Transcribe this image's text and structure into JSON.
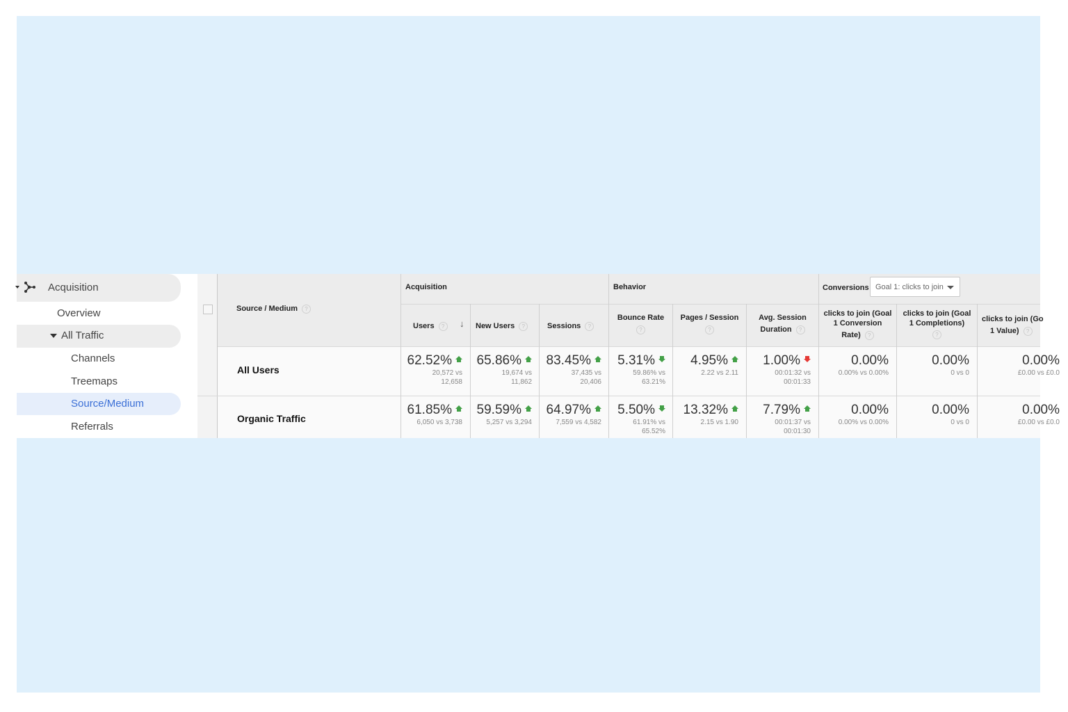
{
  "sidebar": {
    "acquisition": "Acquisition",
    "overview": "Overview",
    "all_traffic": "All Traffic",
    "channels": "Channels",
    "treemaps": "Treemaps",
    "source_medium": "Source/Medium",
    "referrals": "Referrals"
  },
  "table": {
    "dimension_header": "Source / Medium",
    "groups": {
      "acquisition": "Acquisition",
      "behavior": "Behavior",
      "conversions": "Conversions"
    },
    "goal_select": "Goal 1: clicks to join",
    "columns": {
      "users": "Users",
      "new_users": "New Users",
      "sessions": "Sessions",
      "bounce_rate": "Bounce Rate",
      "pages_session": "Pages / Session",
      "avg_session_1": "Avg. Session",
      "avg_session_2": "Duration",
      "conv_rate_1": "clicks to join (Goal",
      "conv_rate_2": "1 Conversion",
      "conv_rate_3": "Rate)",
      "completions_1": "clicks to join (Goal",
      "completions_2": "1 Completions)",
      "value_1": "clicks to join (Go",
      "value_2": "1 Value)"
    },
    "rows": [
      {
        "label": "All Users",
        "cells": [
          {
            "value": "62.52%",
            "trend": "up",
            "sub1": "20,572 vs",
            "sub2": "12,658"
          },
          {
            "value": "65.86%",
            "trend": "up",
            "sub1": "19,674 vs",
            "sub2": "11,862"
          },
          {
            "value": "83.45%",
            "trend": "up",
            "sub1": "37,435 vs",
            "sub2": "20,406"
          },
          {
            "value": "5.31%",
            "trend": "down-green",
            "sub1": "59.86% vs",
            "sub2": "63.21%"
          },
          {
            "value": "4.95%",
            "trend": "up",
            "sub1": "2.22 vs 2.11",
            "sub2": ""
          },
          {
            "value": "1.00%",
            "trend": "down-red",
            "sub1": "00:01:32 vs",
            "sub2": "00:01:33"
          },
          {
            "value": "0.00%",
            "trend": "",
            "sub1": "0.00% vs 0.00%",
            "sub2": ""
          },
          {
            "value": "0.00%",
            "trend": "",
            "sub1": "0 vs 0",
            "sub2": ""
          },
          {
            "value": "0.00%",
            "trend": "",
            "sub1": "£0.00 vs £0.0",
            "sub2": ""
          }
        ]
      },
      {
        "label": "Organic Traffic",
        "cells": [
          {
            "value": "61.85%",
            "trend": "up",
            "sub1": "6,050 vs 3,738",
            "sub2": ""
          },
          {
            "value": "59.59%",
            "trend": "up",
            "sub1": "5,257 vs 3,294",
            "sub2": ""
          },
          {
            "value": "64.97%",
            "trend": "up",
            "sub1": "7,559 vs 4,582",
            "sub2": ""
          },
          {
            "value": "5.50%",
            "trend": "down-green",
            "sub1": "61.91% vs",
            "sub2": "65.52%"
          },
          {
            "value": "13.32%",
            "trend": "up",
            "sub1": "2.15 vs 1.90",
            "sub2": ""
          },
          {
            "value": "7.79%",
            "trend": "up",
            "sub1": "00:01:37 vs",
            "sub2": "00:01:30"
          },
          {
            "value": "0.00%",
            "trend": "",
            "sub1": "0.00% vs 0.00%",
            "sub2": ""
          },
          {
            "value": "0.00%",
            "trend": "",
            "sub1": "0 vs 0",
            "sub2": ""
          },
          {
            "value": "0.00%",
            "trend": "",
            "sub1": "£0.00 vs £0.0",
            "sub2": ""
          }
        ]
      }
    ]
  },
  "colors": {
    "background": "#dff0fc",
    "active_nav": "#3b6fd6",
    "up_green": "#43a047",
    "down_red": "#e53935"
  }
}
